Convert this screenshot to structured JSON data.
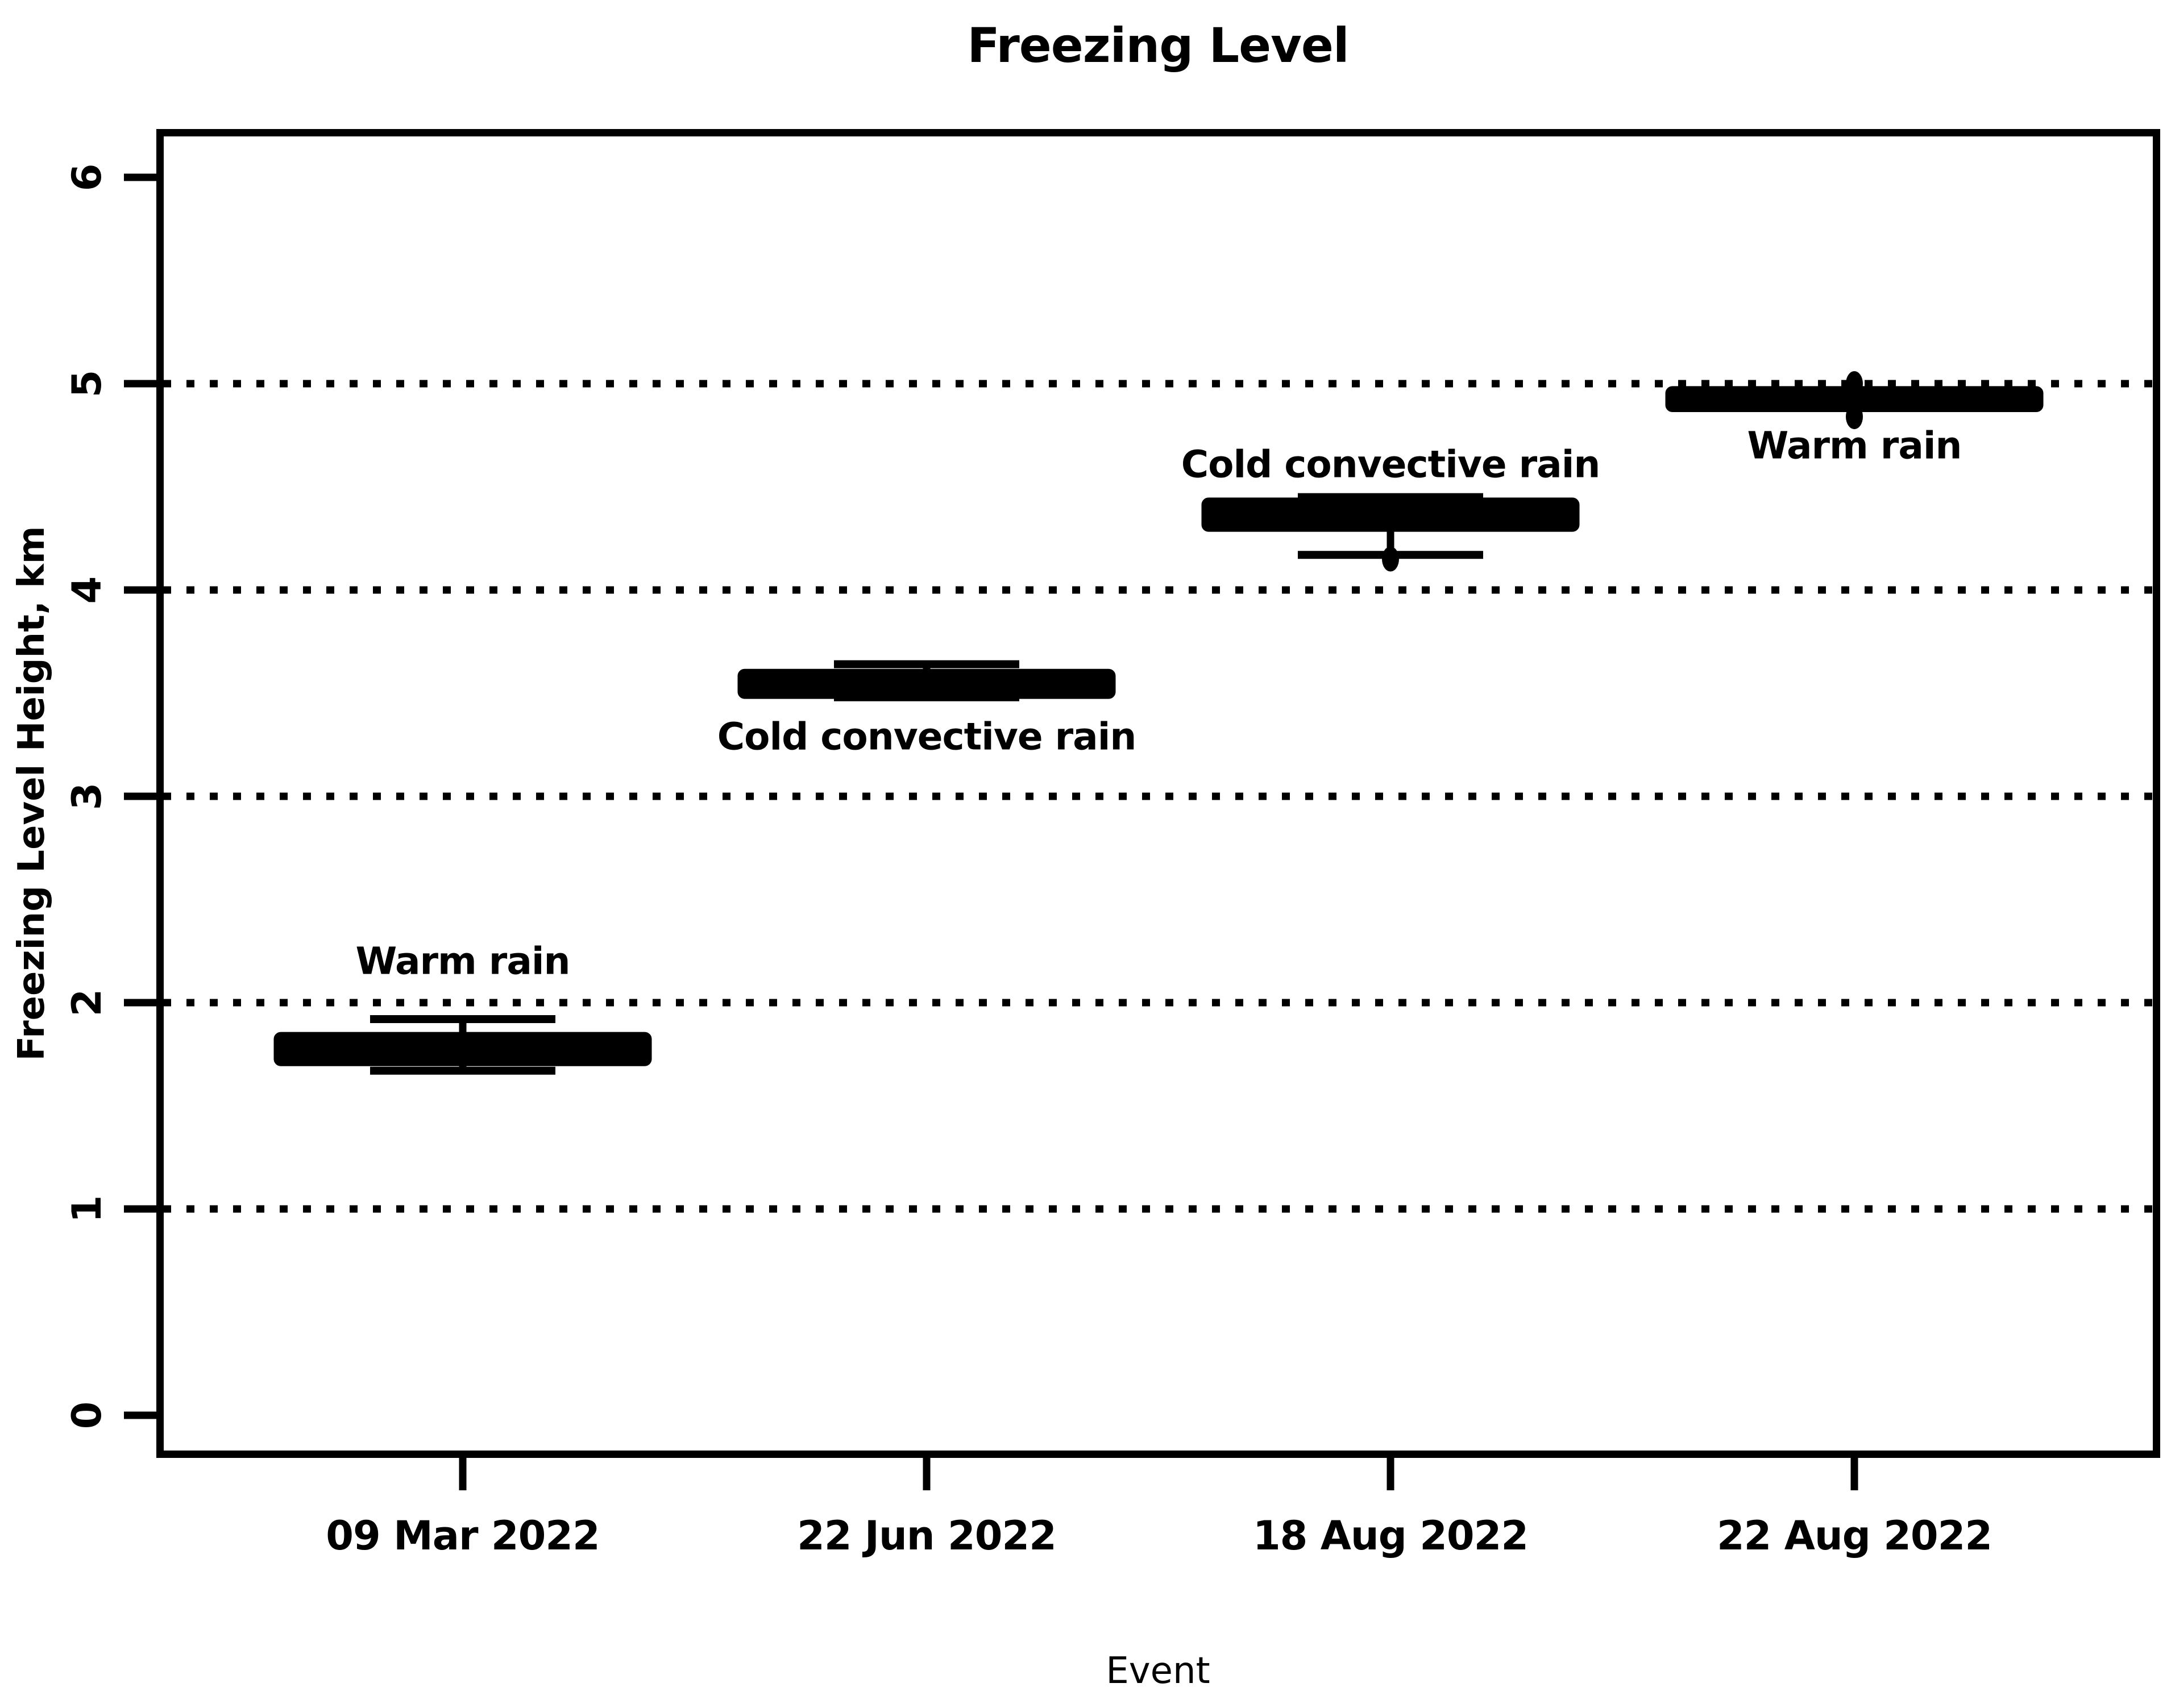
{
  "colors": {
    "foreground": "#000000",
    "background": "#ffffff"
  },
  "chart_data": {
    "type": "boxplot",
    "title": "Freezing Level",
    "xlabel": "Event",
    "ylabel": "Freezing Level Height, km",
    "categories": [
      "09 Mar 2022",
      "22 Jun 2022",
      "18 Aug 2022",
      "22 Aug 2022"
    ],
    "yticks": [
      0,
      1,
      2,
      3,
      4,
      5,
      6
    ],
    "ylim": [
      -0.2,
      6.23
    ],
    "gridlines": [
      1,
      2,
      3,
      4,
      5
    ],
    "grid_style": "dotted",
    "legend_position": "none",
    "series": [
      {
        "category": "09 Mar 2022",
        "annotation": "Warm rain",
        "annotation_position": "above",
        "annotation_y": 2.2,
        "whisker_low": 1.67,
        "q1": 1.71,
        "median": 1.78,
        "q3": 1.84,
        "whisker_high": 1.92,
        "outliers": []
      },
      {
        "category": "22 Jun 2022",
        "annotation": "Cold convective rain",
        "annotation_position": "below",
        "annotation_y": 3.29,
        "whisker_low": 3.48,
        "q1": 3.49,
        "median": 3.55,
        "q3": 3.6,
        "whisker_high": 3.64,
        "outliers": []
      },
      {
        "category": "18 Aug 2022",
        "annotation": "Cold convective rain",
        "annotation_position": "above",
        "annotation_y": 4.61,
        "whisker_low": 4.17,
        "q1": 4.3,
        "median": 4.37,
        "q3": 4.43,
        "whisker_high": 4.45,
        "outliers": [
          4.15
        ]
      },
      {
        "category": "22 Aug 2022",
        "annotation": "Warm rain",
        "annotation_position": "below",
        "annotation_y": 4.7,
        "whisker_low": 4.88,
        "q1": 4.88,
        "median": 4.92,
        "q3": 4.97,
        "whisker_high": 4.97,
        "outliers": [
          5.0,
          4.84
        ]
      }
    ]
  }
}
